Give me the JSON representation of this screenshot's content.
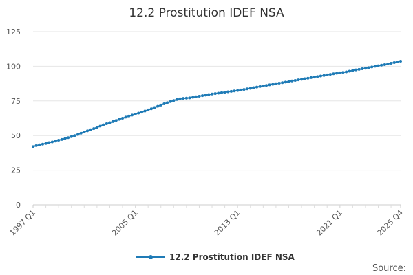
{
  "chart_data": {
    "type": "line",
    "title": "12.2 Prostitution IDEF NSA",
    "xlabel": "",
    "ylabel": "",
    "x_start": "1997 Q1",
    "x_end": "2025 Q4",
    "x_tick_labels": [
      "1997 Q1",
      "2005 Q1",
      "2013 Q1",
      "2021 Q1",
      "2025 Q4"
    ],
    "ylim": [
      0,
      125
    ],
    "y_ticks": [
      0,
      25,
      50,
      75,
      100,
      125
    ],
    "grid": true,
    "legend_position": "bottom",
    "source_label": "Source:",
    "series": [
      {
        "name": "12.2 Prostitution IDEF NSA",
        "color": "#1f7bb6",
        "values": [
          42.0,
          42.7,
          43.3,
          43.8,
          44.3,
          44.9,
          45.4,
          46.0,
          46.6,
          47.2,
          47.8,
          48.5,
          49.2,
          50.0,
          50.8,
          51.7,
          52.6,
          53.4,
          54.2,
          55.0,
          55.9,
          56.8,
          57.7,
          58.5,
          59.3,
          60.1,
          60.9,
          61.7,
          62.5,
          63.3,
          64.1,
          64.8,
          65.5,
          66.2,
          66.9,
          67.7,
          68.5,
          69.3,
          70.2,
          71.1,
          72.0,
          72.9,
          73.7,
          74.5,
          75.3,
          76.0,
          76.5,
          76.8,
          77.0,
          77.2,
          77.6,
          78.0,
          78.4,
          78.8,
          79.2,
          79.6,
          80.0,
          80.3,
          80.6,
          81.0,
          81.3,
          81.6,
          81.9,
          82.2,
          82.5,
          82.9,
          83.3,
          83.7,
          84.1,
          84.6,
          85.0,
          85.4,
          85.8,
          86.2,
          86.6,
          87.0,
          87.4,
          87.8,
          88.2,
          88.6,
          89.0,
          89.4,
          89.8,
          90.2,
          90.6,
          91.0,
          91.4,
          91.8,
          92.2,
          92.6,
          93.0,
          93.4,
          93.8,
          94.2,
          94.6,
          95.0,
          95.3,
          95.6,
          96.0,
          96.5,
          97.0,
          97.4,
          97.8,
          98.2,
          98.6,
          99.0,
          99.5,
          100.0,
          100.4,
          100.8,
          101.2,
          101.7,
          102.2,
          102.7,
          103.2,
          103.7
        ]
      }
    ]
  }
}
